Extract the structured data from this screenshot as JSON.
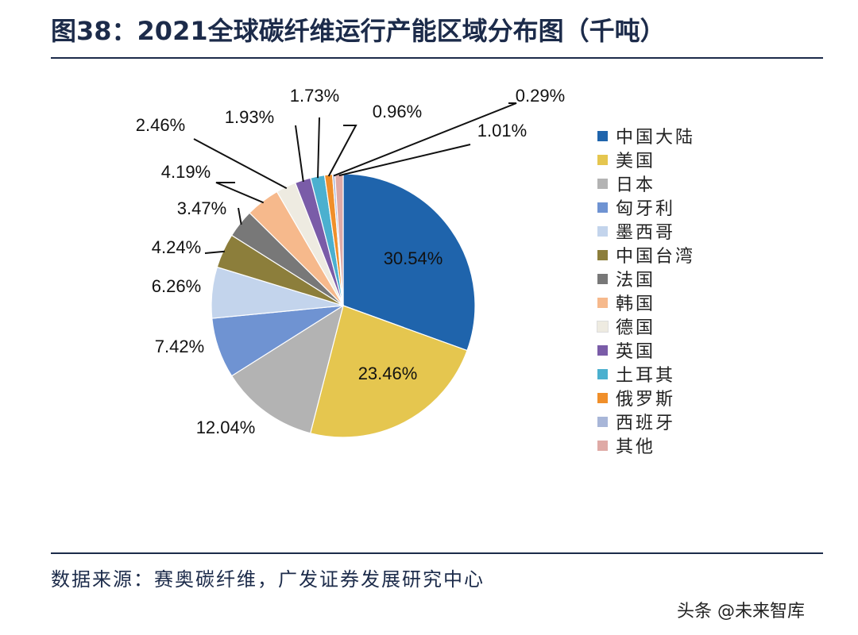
{
  "header": {
    "title": "图38：2021全球碳纤维运行产能区域分布图（千吨）"
  },
  "footer": {
    "source": "数据来源：赛奥碳纤维，广发证券发展研究中心",
    "watermark": "头条 @未来智库"
  },
  "chart_data": {
    "type": "pie",
    "title": "2021全球碳纤维运行产能区域分布图（千吨）",
    "unit": "%",
    "start_angle_deg": 0,
    "direction": "clockwise",
    "legend_position": "right",
    "slices": [
      {
        "label": "中国大陆",
        "value": 30.54,
        "display": "30.54%",
        "color": "#1f64ac"
      },
      {
        "label": "美国",
        "value": 23.46,
        "display": "23.46%",
        "color": "#e5c64f"
      },
      {
        "label": "日本",
        "value": 12.04,
        "display": "12.04%",
        "color": "#b3b3b3"
      },
      {
        "label": "匈牙利",
        "value": 7.42,
        "display": "7.42%",
        "color": "#6f93d2"
      },
      {
        "label": "墨西哥",
        "value": 6.26,
        "display": "6.26%",
        "color": "#c3d4ec"
      },
      {
        "label": "中国台湾",
        "value": 4.24,
        "display": "4.24%",
        "color": "#8c7e3b"
      },
      {
        "label": "法国",
        "value": 3.47,
        "display": "3.47%",
        "color": "#787878"
      },
      {
        "label": "韩国",
        "value": 4.19,
        "display": "4.19%",
        "color": "#f6b98c"
      },
      {
        "label": "德国",
        "value": 2.46,
        "display": "2.46%",
        "color": "#eeebe1"
      },
      {
        "label": "英国",
        "value": 1.93,
        "display": "1.93%",
        "color": "#7a5ca8"
      },
      {
        "label": "土耳其",
        "value": 1.73,
        "display": "1.73%",
        "color": "#4bb0cf"
      },
      {
        "label": "俄罗斯",
        "value": 0.96,
        "display": "0.96%",
        "color": "#f08f2a"
      },
      {
        "label": "西班牙",
        "value": 0.29,
        "display": "0.29%",
        "color": "#a8b6d8"
      },
      {
        "label": "其他",
        "value": 1.01,
        "display": "1.01%",
        "color": "#dfaaa6"
      }
    ]
  }
}
